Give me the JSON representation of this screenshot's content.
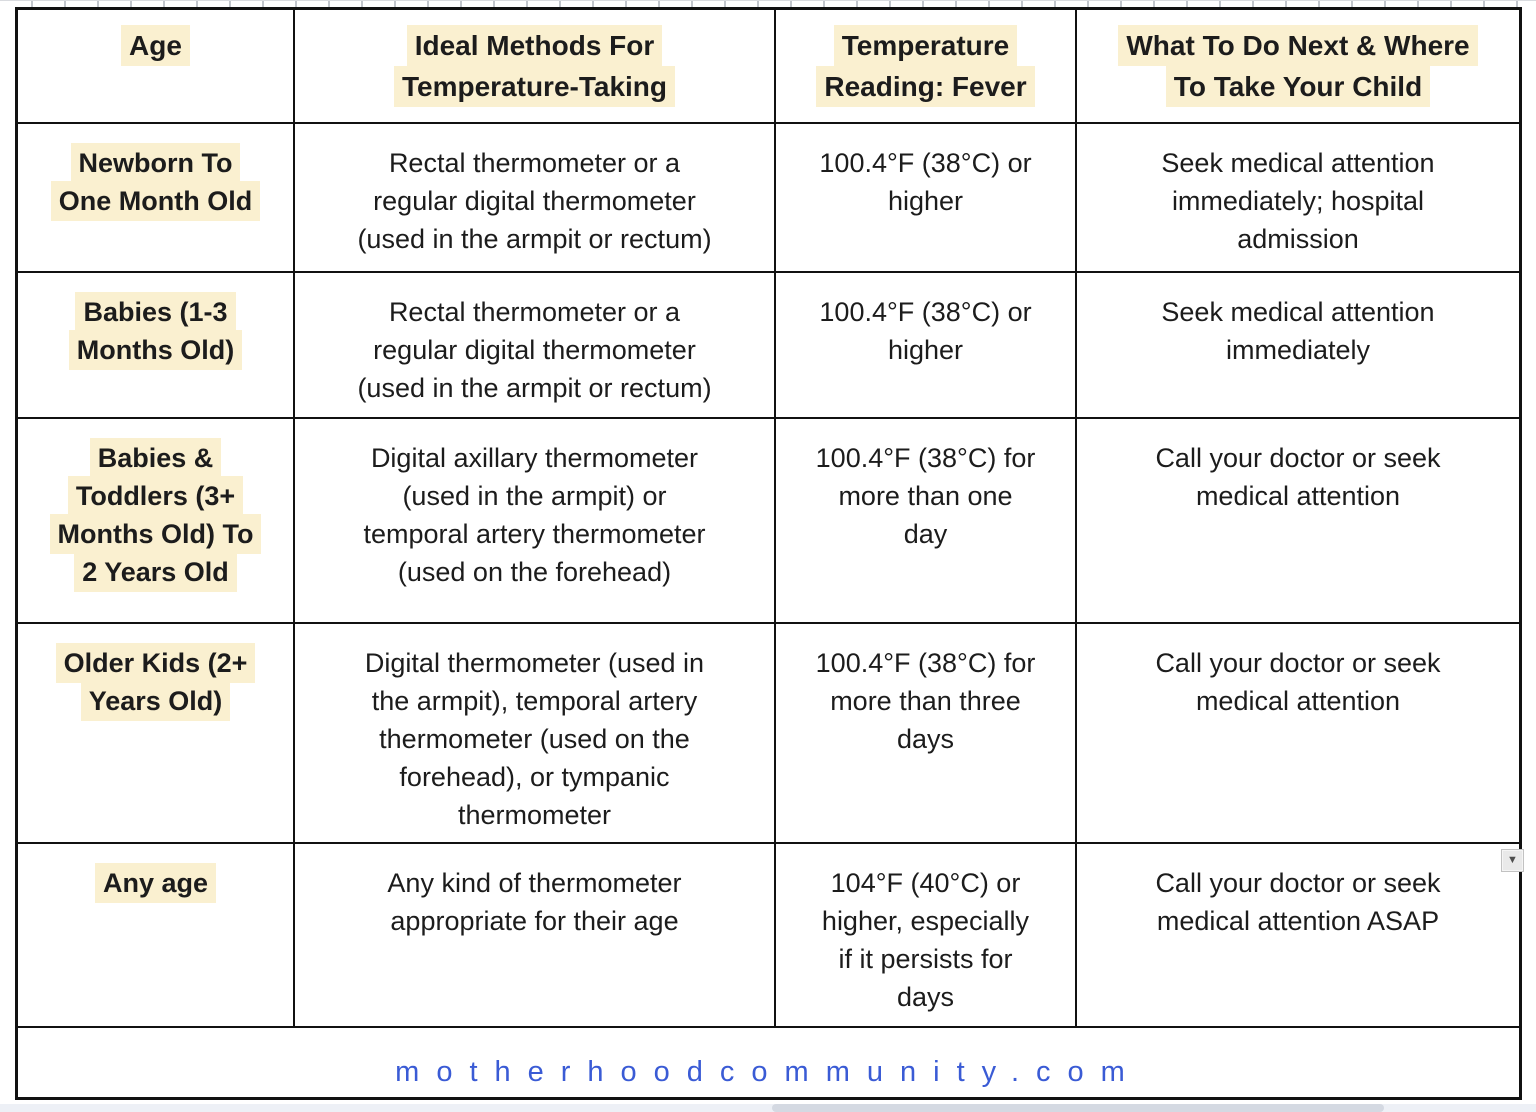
{
  "colors": {
    "highlight": "#FAF0D0",
    "footer_blue": "#3A5BD5",
    "border_black": "#111111"
  },
  "icons": {
    "dropdown_arrow": "▼"
  },
  "table": {
    "columns": [
      "Age",
      "Ideal Methods For\nTemperature-Taking",
      "Temperature\nReading: Fever",
      "What To Do Next & Where\nTo Take Your Child"
    ],
    "rows": [
      {
        "age": "Newborn To\nOne Month Old",
        "method": "Rectal thermometer or a\nregular digital thermometer\n(used in the armpit or rectum)",
        "reading": "100.4°F (38°C) or\nhigher",
        "action": "Seek medical attention\nimmediately; hospital\nadmission"
      },
      {
        "age": "Babies (1-3\nMonths Old)",
        "method": "Rectal thermometer or a\nregular digital thermometer\n(used in the armpit or rectum)",
        "reading": "100.4°F (38°C) or\nhigher",
        "action": "Seek medical attention\nimmediately"
      },
      {
        "age": "Babies &\nToddlers (3+\nMonths Old) To\n2 Years Old",
        "method": "Digital axillary thermometer\n(used in the armpit) or\ntemporal artery thermometer\n(used on the forehead)",
        "reading": "100.4°F (38°C) for\nmore than one\nday",
        "action": "Call your doctor or seek\nmedical attention"
      },
      {
        "age": "Older Kids (2+\nYears Old)",
        "method": "Digital thermometer (used in\nthe armpit), temporal artery\nthermometer (used on the\nforehead), or tympanic\nthermometer",
        "reading": "100.4°F (38°C) for\nmore than three\ndays",
        "action": "Call your doctor or seek\nmedical attention"
      },
      {
        "age": "Any age",
        "method": "Any kind of thermometer\nappropriate for their age",
        "reading": "104°F (40°C) or\nhigher, especially\nif it persists for\ndays",
        "action": "Call your doctor or seek\nmedical attention ASAP"
      }
    ],
    "footer": {
      "site": "motherhoodcommunity.com"
    }
  }
}
